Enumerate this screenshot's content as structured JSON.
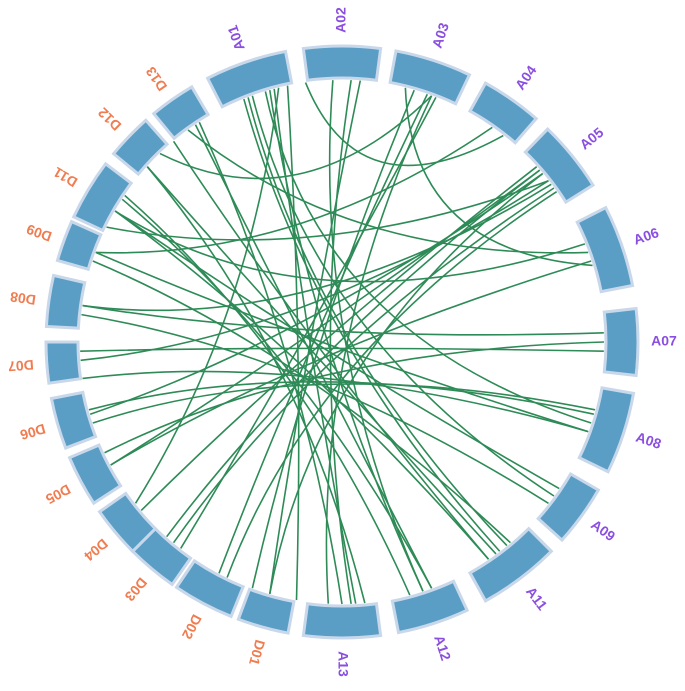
{
  "segments": [
    "A01",
    "A02",
    "A03",
    "A04",
    "A05",
    "A06",
    "A07",
    "A08",
    "A09",
    "A11",
    "A12",
    "A13",
    "D01",
    "D02",
    "D03",
    "D04",
    "D05",
    "D06",
    "D07",
    "D08",
    "D09",
    "D11",
    "D12",
    "D13"
  ]
}
